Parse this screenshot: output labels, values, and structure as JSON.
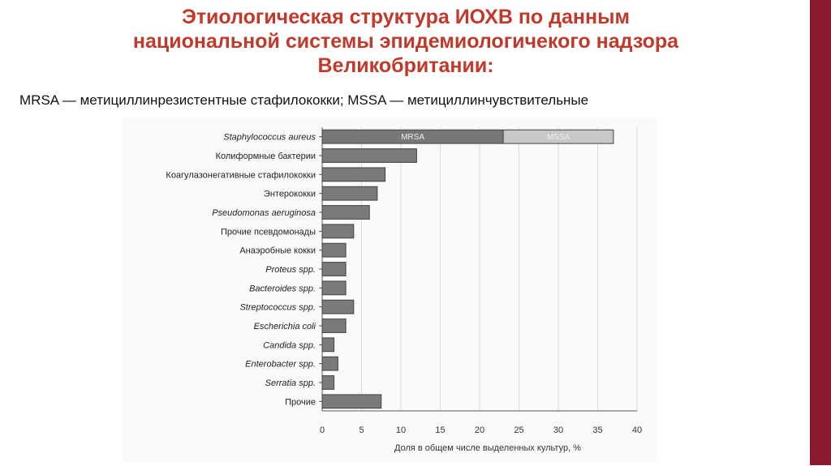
{
  "slide": {
    "title_lines": [
      "Этиологическая структура ИОХВ по данным",
      "национальной системы эпидемиологичекого надзора",
      "Великобритании:"
    ],
    "subtitle": "MRSA — метициллинрезистентные стафилококки; MSSA — метициллинчувствительные",
    "accent_color": "#c0392b",
    "side_bar_color": "#8b1a2e"
  },
  "chart_data": {
    "type": "bar",
    "orientation": "horizontal",
    "title": "",
    "xlabel": "Доля в общем числе выделенных культур, %",
    "ylabel": "",
    "xlim": [
      0,
      40
    ],
    "xticks": [
      0,
      5,
      10,
      15,
      20,
      25,
      30,
      35,
      40
    ],
    "grid": true,
    "categories": [
      "Staphylococcus aureus",
      "Колиформные бактерии",
      "Коагулазонегативные стафилококки",
      "Энтерококки",
      "Pseudomonas aeruginosa",
      "Прочие псевдомонады",
      "Анаэробные кокки",
      "Proteus spp.",
      "Bacteroides spp.",
      "Streptococcus spp.",
      "Escherichia coli",
      "Candida spp.",
      "Enterobacter spp.",
      "Serratia spp.",
      "Прочие"
    ],
    "italic_categories": [
      true,
      false,
      false,
      false,
      true,
      false,
      false,
      true,
      true,
      true,
      true,
      true,
      true,
      true,
      false
    ],
    "values": [
      37,
      12,
      8,
      7,
      6,
      4,
      3,
      3,
      3,
      4,
      3,
      1.5,
      2,
      1.5,
      7.5
    ],
    "stacked_first_bar": [
      {
        "label": "MRSA",
        "value": 23,
        "color": "#777777"
      },
      {
        "label": "MSSA",
        "value": 14,
        "color": "#c8c8c8"
      }
    ],
    "bar_color": "#7a7a7a"
  }
}
